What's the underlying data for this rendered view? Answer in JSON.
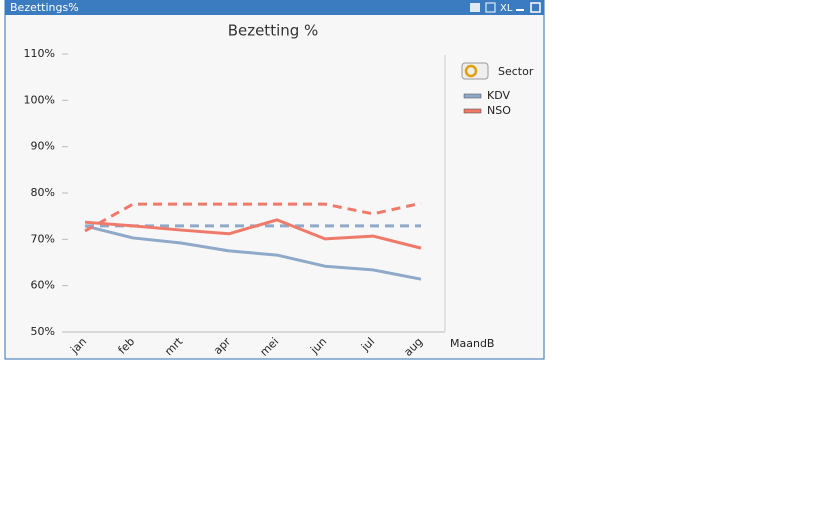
{
  "window": {
    "title": "Bezettings%",
    "icon_text": "XL"
  },
  "chart_data": {
    "type": "line",
    "title": "Bezetting %",
    "x_label": "MaandB",
    "legend_title": "Sector",
    "categories": [
      "jan",
      "feb",
      "mrt",
      "apr",
      "mei",
      "jun",
      "jul",
      "aug"
    ],
    "series": [
      {
        "name": "KDV",
        "color": "#8fa9c9",
        "dashed": false,
        "values": [
          72.9,
          70.3,
          69.2,
          67.5,
          66.6,
          64.2,
          63.4,
          61.4
        ]
      },
      {
        "color": "#8fa9c9",
        "dashed": true,
        "values": [
          72.9,
          72.9,
          72.9,
          72.9,
          72.9,
          72.9,
          72.9,
          72.9
        ]
      },
      {
        "name": "NSO",
        "color": "#f07a6a",
        "dashed": false,
        "values": [
          73.7,
          72.9,
          72.0,
          71.2,
          74.2,
          70.1,
          70.7,
          68.1
        ]
      },
      {
        "color": "#f07a6a",
        "dashed": true,
        "values": [
          71.8,
          77.6,
          77.6,
          77.6,
          77.6,
          77.6,
          75.5,
          77.8
        ]
      }
    ],
    "ylim": [
      50,
      110
    ],
    "yticks": [
      {
        "value": 50,
        "label": "50%"
      },
      {
        "value": 60,
        "label": "60%"
      },
      {
        "value": 70,
        "label": "70%"
      },
      {
        "value": 80,
        "label": "80%"
      },
      {
        "value": 90,
        "label": "90%"
      },
      {
        "value": 100,
        "label": "100%"
      },
      {
        "value": 110,
        "label": "110%"
      }
    ],
    "grid": false,
    "legend_position": "right"
  }
}
